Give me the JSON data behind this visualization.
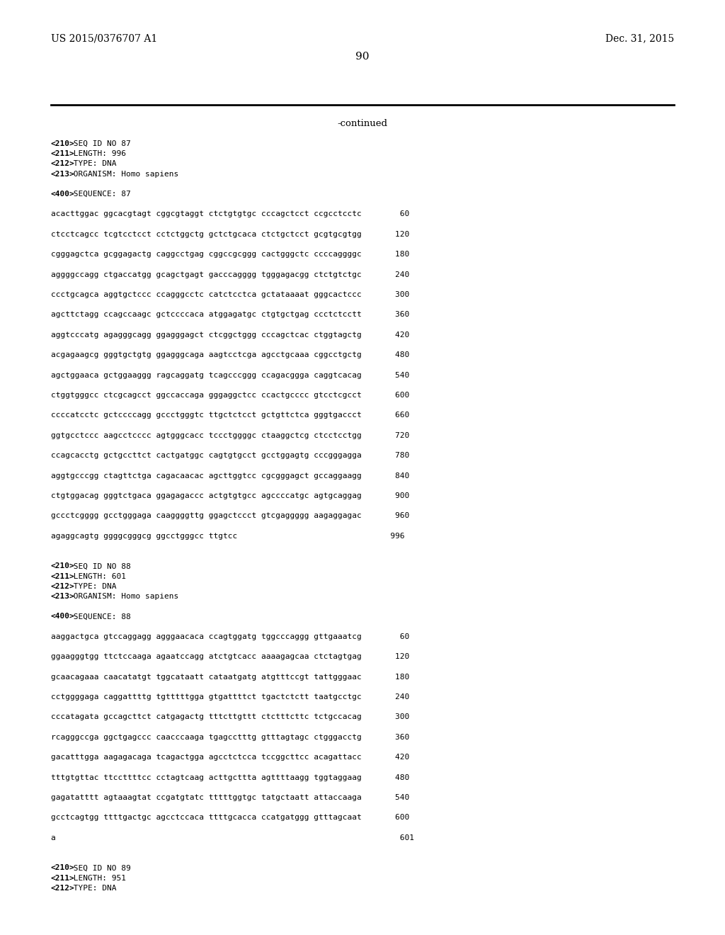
{
  "bg_color": "#ffffff",
  "header_left": "US 2015/0376707 A1",
  "header_right": "Dec. 31, 2015",
  "page_number": "90",
  "continued_text": "-continued",
  "content": [
    "<210> SEQ ID NO 87",
    "<211> LENGTH: 996",
    "<212> TYPE: DNA",
    "<213> ORGANISM: Homo sapiens",
    "",
    "<400> SEQUENCE: 87",
    "",
    "acacttggac ggcacgtagt cggcgtaggt ctctgtgtgc cccagctcct ccgcctcctc        60",
    "",
    "ctcctcagcc tcgtcctcct cctctggctg gctctgcaca ctctgctcct gcgtgcgtgg       120",
    "",
    "cgggagctca gcggagactg caggcctgag cggccgcggg cactgggctc ccccaggggc       180",
    "",
    "aggggccagg ctgaccatgg gcagctgagt gacccagggg tgggagacgg ctctgtctgc       240",
    "",
    "ccctgcagca aggtgctccc ccagggcctc catctcctca gctataaaat gggcactccc       300",
    "",
    "agcttctagg ccagccaagc gctccccaca atggagatgc ctgtgctgag ccctctcctt       360",
    "",
    "aggtcccatg agagggcagg ggagggagct ctcggctggg cccagctcac ctggtagctg       420",
    "",
    "acgagaagcg gggtgctgtg ggagggcaga aagtcctcga agcctgcaaa cggcctgctg       480",
    "",
    "agctggaaca gctggaaggg ragcaggatg tcagcccggg ccagacggga caggtcacag       540",
    "",
    "ctggtgggcc ctcgcagcct ggccaccaga gggaggctcc ccactgcccc gtcctcgcct       600",
    "",
    "ccccatcctc gctccccagg gccctgggtc ttgctctcct gctgttctca gggtgaccct       660",
    "",
    "ggtgcctccc aagcctcccc agtgggcacc tccctggggc ctaaggctcg ctcctcctgg       720",
    "",
    "ccagcacctg gctgccttct cactgatggc cagtgtgcct gcctggagtg cccgggagga       780",
    "",
    "aggtgcccgg ctagttctga cagacaacac agcttggtcc cgcgggagct gccaggaagg       840",
    "",
    "ctgtggacag gggtctgaca ggagagaccc actgtgtgcc agccccatgc agtgcaggag       900",
    "",
    "gccctcgggg gcctgggaga caaggggttg ggagctccct gtcgaggggg aagaggagac       960",
    "",
    "agaggcagtg ggggcgggcg ggcctgggcc ttgtcc                                996",
    "",
    "",
    "<210> SEQ ID NO 88",
    "<211> LENGTH: 601",
    "<212> TYPE: DNA",
    "<213> ORGANISM: Homo sapiens",
    "",
    "<400> SEQUENCE: 88",
    "",
    "aaggactgca gtccaggagg agggaacaca ccagtggatg tggcccaggg gttgaaatcg        60",
    "",
    "ggaagggtgg ttctccaaga agaatccagg atctgtcacc aaaagagcaa ctctagtgag       120",
    "",
    "gcaacagaaa caacatatgt tggcataatt cataatgatg atgtttccgt tattgggaac       180",
    "",
    "cctggggaga caggattttg tgtttttgga gtgattttct tgactctctt taatgcctgc       240",
    "",
    "cccatagata gccagcttct catgagactg tttcttgttt ctctttcttc tctgccacag       300",
    "",
    "rcagggccga ggctgagccc caacccaaga tgagcctttg gtttagtagc ctgggacctg       360",
    "",
    "gacatttgga aagagacaga tcagactgga agcctctcca tccggcttcc acagattacc       420",
    "",
    "tttgtgttac ttccttttcc cctagtcaag acttgcttta agttttaagg tggtaggaag       480",
    "",
    "gagatatttt agtaaagtat ccgatgtatc tttttggtgc tatgctaatt attaccaaga       540",
    "",
    "gcctcagtgg ttttgactgc agcctccaca ttttgcacca ccatgatggg gtttagcaat       600",
    "",
    "a                                                                        601",
    "",
    "",
    "<210> SEQ ID NO 89",
    "<211> LENGTH: 951",
    "<212> TYPE: DNA"
  ]
}
